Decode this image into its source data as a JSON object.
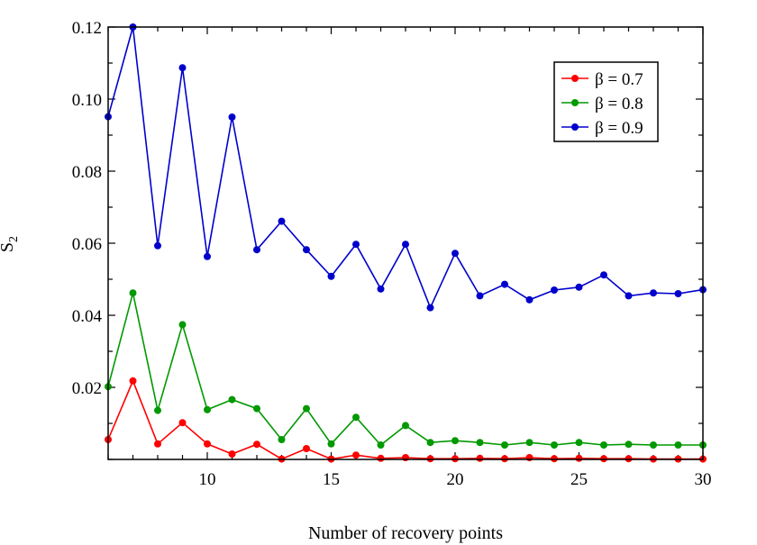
{
  "chart_data": {
    "type": "line",
    "title": "",
    "xlabel": "Number of recovery points",
    "ylabel_main": "S",
    "ylabel_sub": "2",
    "xlim": [
      6,
      30
    ],
    "ylim": [
      0,
      0.12
    ],
    "xticks": [
      10,
      15,
      20,
      25,
      30
    ],
    "yticks": [
      0.02,
      0.04,
      0.06,
      0.08,
      0.1,
      0.12
    ],
    "ytick_labels": [
      "0.02",
      "0.04",
      "0.06",
      "0.08",
      "0.10",
      "0.12"
    ],
    "legend_position": "top-right",
    "x": [
      6,
      7,
      8,
      9,
      10,
      11,
      12,
      13,
      14,
      15,
      16,
      17,
      18,
      19,
      20,
      21,
      22,
      23,
      24,
      25,
      26,
      27,
      28,
      29,
      30
    ],
    "series": [
      {
        "name": "β = 0.7",
        "color": "#ff0000",
        "values": [
          0.0055,
          0.0218,
          0.0043,
          0.0102,
          0.0043,
          0.0015,
          0.0042,
          0.0001,
          0.003,
          0.0001,
          0.0012,
          0.0003,
          0.0005,
          0.0002,
          0.0002,
          0.0003,
          0.0002,
          0.0005,
          0.0002,
          0.0003,
          0.0002,
          0.0002,
          0.0001,
          0.0001,
          0.0001
        ]
      },
      {
        "name": "β = 0.8",
        "color": "#009900",
        "values": [
          0.0202,
          0.0462,
          0.0136,
          0.0374,
          0.0138,
          0.0166,
          0.0141,
          0.0055,
          0.0141,
          0.0043,
          0.0117,
          0.004,
          0.0094,
          0.0047,
          0.0052,
          0.0047,
          0.004,
          0.0047,
          0.004,
          0.0047,
          0.004,
          0.0042,
          0.004,
          0.004,
          0.004
        ]
      },
      {
        "name": "β = 0.9",
        "color": "#0000cc",
        "values": [
          0.0951,
          0.12,
          0.0593,
          0.1087,
          0.0563,
          0.095,
          0.0582,
          0.0661,
          0.0582,
          0.0508,
          0.0597,
          0.0473,
          0.0597,
          0.0421,
          0.0572,
          0.0454,
          0.0486,
          0.0443,
          0.047,
          0.0478,
          0.0512,
          0.0454,
          0.0462,
          0.046,
          0.0471
        ]
      }
    ]
  }
}
